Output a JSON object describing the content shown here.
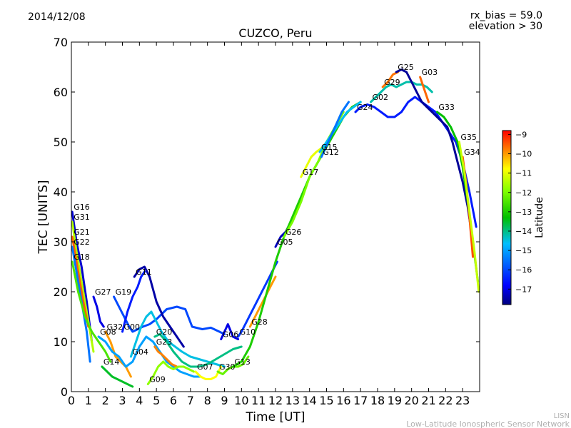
{
  "date": "2014/12/08",
  "bias_text": "rx_bias = 59.0",
  "elevation_text": "elevation > 30",
  "watermark_line1": "LISN",
  "watermark_line2": "Low-Latitude Ionospheric Sensor Network",
  "chart_data": {
    "type": "scatter",
    "title": "CUZCO, Peru",
    "xlabel": "Time [UT]",
    "ylabel": "TEC [UNITS]",
    "xlim": [
      0,
      24
    ],
    "ylim": [
      0,
      70
    ],
    "x_ticks": [
      0,
      1,
      2,
      3,
      4,
      5,
      6,
      7,
      8,
      9,
      10,
      11,
      12,
      13,
      14,
      15,
      16,
      17,
      18,
      19,
      20,
      21,
      22,
      23
    ],
    "y_ticks": [
      0,
      10,
      20,
      30,
      40,
      50,
      60,
      70
    ],
    "colorbar": {
      "label": "Latitude",
      "range": [
        -17.8,
        -8.8
      ],
      "ticks": [
        -9,
        -10,
        -11,
        -12,
        -13,
        -14,
        -15,
        -16,
        -17
      ]
    },
    "series": [
      {
        "name": "G16",
        "lat": -17.2,
        "x": [
          0.05,
          0.3,
          0.6,
          0.9,
          1.2
        ],
        "y": [
          36,
          30,
          25,
          18,
          10
        ]
      },
      {
        "name": "G31",
        "lat": -11.5,
        "x": [
          0.05,
          0.3,
          0.6,
          1.0,
          1.3
        ],
        "y": [
          34,
          28,
          22,
          14,
          8
        ]
      },
      {
        "name": "G21",
        "lat": -9.5,
        "x": [
          0.05,
          0.2,
          0.4,
          0.7,
          1.0
        ],
        "y": [
          31,
          28,
          24,
          18,
          13
        ]
      },
      {
        "name": "G22",
        "lat": -15.5,
        "x": [
          0.05,
          0.3,
          0.6,
          0.9,
          1.1
        ],
        "y": [
          29,
          24,
          18,
          12,
          6
        ]
      },
      {
        "name": "G18",
        "lat": -12.5,
        "x": [
          0.05,
          0.4,
          0.8,
          1.2,
          1.6,
          2.0,
          2.3
        ],
        "y": [
          26,
          20,
          15,
          12,
          10,
          8,
          6
        ]
      },
      {
        "name": "G27",
        "lat": -17.0,
        "x": [
          1.3,
          1.5,
          1.7,
          1.9
        ],
        "y": [
          19,
          17,
          14,
          13
        ]
      },
      {
        "name": "G19",
        "lat": -16.0,
        "x": [
          2.5,
          2.8,
          3.1,
          3.4,
          3.6,
          3.9,
          4.2,
          4.6,
          5.0,
          5.6,
          6.2,
          6.7,
          7.1,
          7.7,
          8.2,
          8.7,
          9.0
        ],
        "y": [
          19,
          17,
          15,
          13,
          12,
          12.5,
          13,
          13.5,
          14.5,
          16.5,
          17,
          16.5,
          13,
          12.5,
          12.8,
          12,
          11.5
        ]
      },
      {
        "name": "G32",
        "lat": -10.0,
        "x": [
          2.0,
          2.3,
          2.6,
          2.9,
          3.2,
          3.5
        ],
        "y": [
          12,
          10,
          7,
          6,
          5,
          3
        ]
      },
      {
        "name": "G14",
        "lat": -13.5,
        "x": [
          1.8,
          2.1,
          2.4,
          2.7,
          3.0,
          3.3,
          3.6
        ],
        "y": [
          5,
          4,
          3,
          2.5,
          2,
          1.5,
          1
        ]
      },
      {
        "name": "G08",
        "lat": -15.0,
        "x": [
          1.6,
          2.0,
          2.4,
          2.8,
          3.2,
          3.6,
          4.0,
          4.4,
          4.8,
          5.2,
          5.6,
          6.0,
          6.4,
          6.8,
          7.2,
          7.6
        ],
        "y": [
          11,
          10,
          8,
          7,
          5,
          6,
          9,
          11,
          10,
          8,
          6,
          5,
          4,
          3.5,
          3,
          3
        ]
      },
      {
        "name": "G00",
        "lat": -16.5,
        "x": [
          3.0,
          3.3,
          3.6,
          3.9,
          4.1,
          4.3
        ],
        "y": [
          12,
          16,
          19,
          21,
          23,
          24
        ]
      },
      {
        "name": "G11",
        "lat": -17.5,
        "x": [
          3.7,
          4.0,
          4.3,
          4.6,
          5.0,
          5.4,
          5.8,
          6.2,
          6.6
        ],
        "y": [
          23,
          24.5,
          25,
          23,
          18,
          15,
          13,
          11,
          9
        ]
      },
      {
        "name": "G04",
        "lat": -14.5,
        "x": [
          3.5,
          3.8,
          4.1,
          4.4,
          4.7,
          5.0,
          5.3,
          5.7,
          6.1,
          6.5,
          7.0,
          7.5,
          8.0,
          8.5,
          9.0
        ],
        "y": [
          7,
          10,
          13,
          15,
          16,
          14,
          12,
          10,
          9,
          8,
          7,
          6.5,
          6,
          5.5,
          5
        ]
      },
      {
        "name": "G20",
        "lat": -14.0,
        "x": [
          4.9,
          5.2,
          5.6,
          6.0,
          6.5,
          7.0,
          7.5,
          8.0,
          8.5,
          9.0,
          9.5,
          10.0
        ],
        "y": [
          11,
          11.5,
          10,
          8,
          6,
          5,
          5,
          5.5,
          6.5,
          7.5,
          8.5,
          9
        ]
      },
      {
        "name": "G23",
        "lat": -9.8,
        "x": [
          4.9,
          5.1,
          5.3,
          5.6,
          5.9,
          6.2
        ],
        "y": [
          9,
          8,
          7.5,
          6.5,
          5.5,
          5
        ]
      },
      {
        "name": "G09",
        "lat": -11.8,
        "x": [
          4.5,
          4.8,
          5.1,
          5.4,
          5.7,
          6.0,
          6.3,
          6.6,
          6.9,
          7.2
        ],
        "y": [
          1.5,
          3,
          5,
          6,
          5,
          4.5,
          5,
          5,
          4.5,
          4
        ]
      },
      {
        "name": "G07",
        "lat": -10.8,
        "x": [
          7.3,
          7.6,
          7.9,
          8.2,
          8.5,
          8.8
        ],
        "y": [
          4,
          3,
          2.5,
          2.5,
          3,
          5
        ]
      },
      {
        "name": "G30",
        "lat": -12.2,
        "x": [
          8.6,
          8.9,
          9.2,
          9.5,
          9.8,
          10.1,
          10.4
        ],
        "y": [
          4,
          3.5,
          4.5,
          5,
          5,
          5.5,
          7
        ]
      },
      {
        "name": "G06",
        "lat": -17.0,
        "x": [
          8.8,
          9.0,
          9.2,
          9.5,
          9.8
        ],
        "y": [
          10.5,
          12,
          13.5,
          11,
          10.5
        ]
      },
      {
        "name": "G10",
        "lat": -16.2,
        "x": [
          9.8,
          10.0,
          10.3,
          10.6,
          10.9,
          11.2,
          11.5,
          11.8,
          12.1
        ],
        "y": [
          11,
          12,
          14,
          16,
          18,
          20,
          22,
          24,
          26
        ]
      },
      {
        "name": "G28",
        "lat": -10.0,
        "x": [
          10.5,
          10.8,
          11.1,
          11.4,
          11.7,
          12.0
        ],
        "y": [
          13,
          15,
          17,
          19,
          21,
          23
        ]
      },
      {
        "name": "G05",
        "lat": -17.3,
        "x": [
          12.0,
          12.3,
          12.6,
          12.9,
          13.2
        ],
        "y": [
          29,
          31,
          32,
          34,
          36
        ]
      },
      {
        "name": "G13",
        "lat": -13.0,
        "x": [
          9.5,
          10.0,
          10.5,
          11.0,
          11.5,
          12.0,
          12.5,
          13.0,
          13.5,
          14.0,
          14.5,
          15.0,
          15.5,
          16.0,
          16.5,
          17.0
        ],
        "y": [
          5,
          6,
          9,
          14,
          20,
          26,
          31,
          35,
          39,
          43,
          46,
          49,
          52,
          55,
          57,
          58
        ]
      },
      {
        "name": "G26",
        "lat": -12.0,
        "x": [
          12.5,
          13.0,
          13.5,
          14.0,
          14.5,
          15.0,
          15.5,
          16.0
        ],
        "y": [
          31,
          34,
          38,
          43,
          46,
          50,
          53,
          56
        ]
      },
      {
        "name": "G17",
        "lat": -11.0,
        "x": [
          13.5,
          13.8,
          14.1,
          14.4,
          14.8
        ],
        "y": [
          43,
          45,
          47,
          48,
          49
        ]
      },
      {
        "name": "G15",
        "lat": -14.6,
        "x": [
          14.6,
          15.0,
          15.4,
          15.8,
          16.2,
          16.6,
          17.0
        ],
        "y": [
          48,
          50,
          52,
          54,
          56,
          57,
          58
        ]
      },
      {
        "name": "G12",
        "lat": -15.5,
        "x": [
          14.7,
          15.1,
          15.5,
          15.9,
          16.3
        ],
        "y": [
          47,
          50,
          53,
          56,
          58
        ]
      },
      {
        "name": "G24",
        "lat": -16.5,
        "x": [
          16.7,
          17.0,
          17.4,
          17.8,
          18.2,
          18.6,
          19.0,
          19.4,
          19.8,
          20.2,
          20.6,
          21.0,
          21.4,
          21.8,
          22.2,
          22.6,
          23.0,
          23.4,
          23.8
        ],
        "y": [
          56,
          57,
          57.5,
          57,
          56,
          55,
          55,
          56,
          58,
          59,
          58,
          57,
          56,
          54,
          52,
          50,
          46,
          40,
          33
        ]
      },
      {
        "name": "G02",
        "lat": -14.2,
        "x": [
          17.6,
          17.9,
          18.2,
          18.5,
          18.8,
          19.1,
          19.4,
          19.7,
          20.0,
          20.3,
          20.6,
          20.9,
          21.2
        ],
        "y": [
          58,
          59,
          60,
          61,
          61.5,
          61,
          61.5,
          62,
          62,
          61.5,
          61.5,
          61,
          60
        ]
      },
      {
        "name": "G29",
        "lat": -9.7,
        "x": [
          18.3,
          18.6,
          18.9,
          19.2
        ],
        "y": [
          61,
          62,
          63.5,
          64
        ]
      },
      {
        "name": "G25",
        "lat": -17.6,
        "x": [
          19.1,
          19.4,
          19.7,
          20.0,
          20.3,
          20.6,
          20.9,
          21.2,
          21.5,
          21.8,
          22.1,
          22.4,
          22.7,
          23.0,
          23.3,
          23.6
        ],
        "y": [
          64,
          64.5,
          64,
          62,
          60,
          58,
          57,
          56,
          55,
          54,
          53,
          50,
          46,
          42,
          37,
          30
        ]
      },
      {
        "name": "G03",
        "lat": -9.6,
        "x": [
          20.5,
          20.8,
          21.0
        ],
        "y": [
          63,
          60,
          58
        ]
      },
      {
        "name": "G33",
        "lat": -13.3,
        "x": [
          21.5,
          21.9,
          22.3,
          22.7,
          23.0,
          23.3,
          23.6,
          23.9
        ],
        "y": [
          56,
          55,
          53,
          50,
          45,
          38,
          30,
          22
        ]
      },
      {
        "name": "G34",
        "lat": -9.4,
        "x": [
          23.0,
          23.2,
          23.4,
          23.6
        ],
        "y": [
          47,
          42,
          35,
          27
        ]
      },
      {
        "name": "G35",
        "lat": -11.3,
        "x": [
          22.8,
          23.1,
          23.4,
          23.7,
          23.95
        ],
        "y": [
          50,
          44,
          36,
          28,
          20
        ]
      }
    ]
  }
}
